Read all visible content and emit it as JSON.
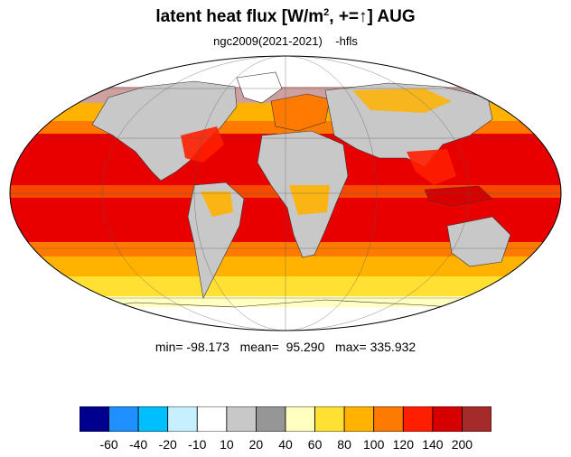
{
  "title": {
    "main": "latent heat flux [W/m",
    "superscript": "2",
    "middle": ", +=",
    "arrow": "↑",
    "end": "]  AUG"
  },
  "subtitle": "ngc2009(2021-2021)    -hfls",
  "stats": "min= -98.173   mean=  95.290   max= 335.932",
  "colorbar": {
    "colors": [
      "#00008f",
      "#1e90ff",
      "#00bfff",
      "#c6efff",
      "#ffffff",
      "#c8c8c8",
      "#969696",
      "#ffffc0",
      "#ffe033",
      "#ffb300",
      "#ff7a00",
      "#ff1e00",
      "#d70000",
      "#a52a2a"
    ],
    "labels": [
      "-60",
      "-40",
      "-20",
      "-10",
      "10",
      "20",
      "40",
      "60",
      "80",
      "100",
      "120",
      "140",
      "200"
    ]
  },
  "map": {
    "projection": "mollweide",
    "ocean_fill": "#e80000",
    "land_fill": "#c8c8c8",
    "antarctica_fill": "#ffffff",
    "band_colors": {
      "subtropical": "#ffb300",
      "high_latitude": "#ffe033",
      "polar": "#ffffff"
    }
  }
}
